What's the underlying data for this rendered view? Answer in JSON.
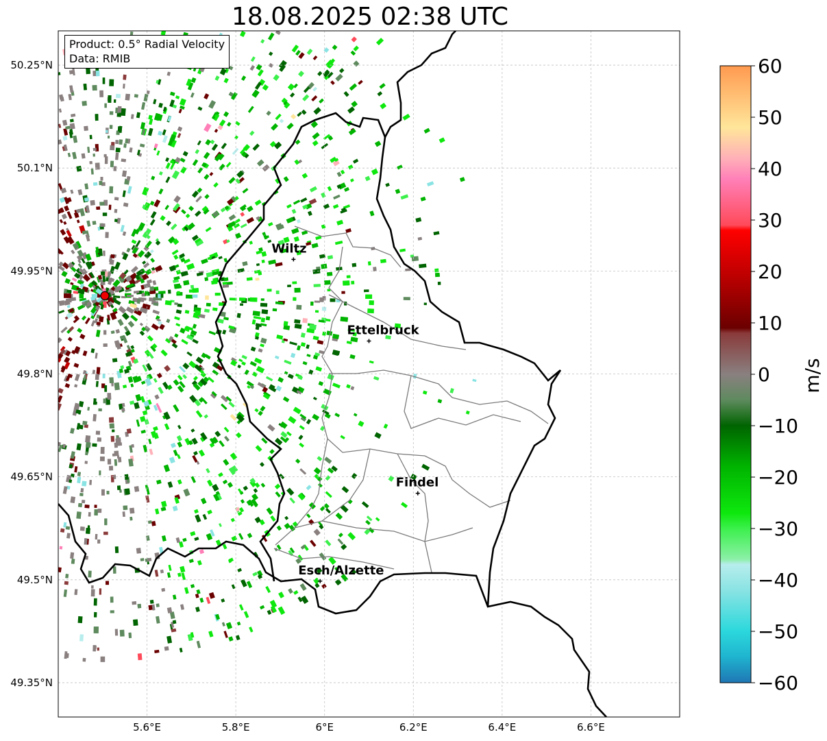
{
  "title": "18.08.2025 02:38 UTC",
  "info": {
    "product": "Product: 0.5° Radial Velocity",
    "data_source": "Data: RMIB"
  },
  "map": {
    "lon_range": [
      5.4,
      6.8
    ],
    "lat_range": [
      49.3,
      50.3
    ],
    "lon_ticks": [
      {
        "value": 5.6,
        "label": "5.6°E"
      },
      {
        "value": 5.8,
        "label": "5.8°E"
      },
      {
        "value": 6.0,
        "label": "6°E"
      },
      {
        "value": 6.2,
        "label": "6.2°E"
      },
      {
        "value": 6.4,
        "label": "6.4°E"
      },
      {
        "value": 6.6,
        "label": "6.6°E"
      }
    ],
    "lat_ticks": [
      {
        "value": 49.35,
        "label": "49.35°N"
      },
      {
        "value": 49.5,
        "label": "49.5°N"
      },
      {
        "value": 49.65,
        "label": "49.65°N"
      },
      {
        "value": 49.8,
        "label": "49.8°N"
      },
      {
        "value": 49.95,
        "label": "49.95°N"
      },
      {
        "value": 50.1,
        "label": "50.1°N"
      },
      {
        "value": 50.25,
        "label": "50.25°N"
      }
    ],
    "radar_site": {
      "lon": 5.505,
      "lat": 49.914
    },
    "cities": [
      {
        "name": "Wiltz",
        "lon": 5.93,
        "lat": 49.967
      },
      {
        "name": "Ettelbruck",
        "lon": 6.1,
        "lat": 49.848
      },
      {
        "name": "Findel",
        "lon": 6.21,
        "lat": 49.626
      },
      {
        "name": "Esch/Alzette",
        "lon": 5.99,
        "lat": 49.498
      }
    ]
  },
  "colorbar": {
    "label": "m/s",
    "vmin": -60,
    "vmax": 60,
    "ticks": [
      {
        "value": 60,
        "label": "60"
      },
      {
        "value": 50,
        "label": "50"
      },
      {
        "value": 40,
        "label": "40"
      },
      {
        "value": 30,
        "label": "30"
      },
      {
        "value": 20,
        "label": "20"
      },
      {
        "value": 10,
        "label": "10"
      },
      {
        "value": 0,
        "label": "0"
      },
      {
        "value": -10,
        "label": "−10"
      },
      {
        "value": -20,
        "label": "−20"
      },
      {
        "value": -30,
        "label": "−30"
      },
      {
        "value": -40,
        "label": "−40"
      },
      {
        "value": -50,
        "label": "−50"
      },
      {
        "value": -60,
        "label": "−60"
      }
    ],
    "stops": [
      {
        "value": -60,
        "color": "#1f77b4"
      },
      {
        "value": -55,
        "color": "#1fb3cf"
      },
      {
        "value": -50,
        "color": "#2bd8dc"
      },
      {
        "value": -42,
        "color": "#8ae3e3"
      },
      {
        "value": -37,
        "color": "#b8eded"
      },
      {
        "value": -36,
        "color": "#8cf0a8"
      },
      {
        "value": -30,
        "color": "#3cf04c"
      },
      {
        "value": -27,
        "color": "#0ee80e"
      },
      {
        "value": -18,
        "color": "#00b400"
      },
      {
        "value": -10,
        "color": "#006400"
      },
      {
        "value": -5,
        "color": "#5e8a5e"
      },
      {
        "value": 0,
        "color": "#8a8080"
      },
      {
        "value": 8,
        "color": "#8a3a3a"
      },
      {
        "value": 9,
        "color": "#6b0000"
      },
      {
        "value": 20,
        "color": "#c40000"
      },
      {
        "value": 28,
        "color": "#ff0000"
      },
      {
        "value": 29,
        "color": "#ff4a5a"
      },
      {
        "value": 38,
        "color": "#ff80b8"
      },
      {
        "value": 42,
        "color": "#ffb0b8"
      },
      {
        "value": 48,
        "color": "#ffe69a"
      },
      {
        "value": 60,
        "color": "#ff9a50"
      }
    ]
  }
}
